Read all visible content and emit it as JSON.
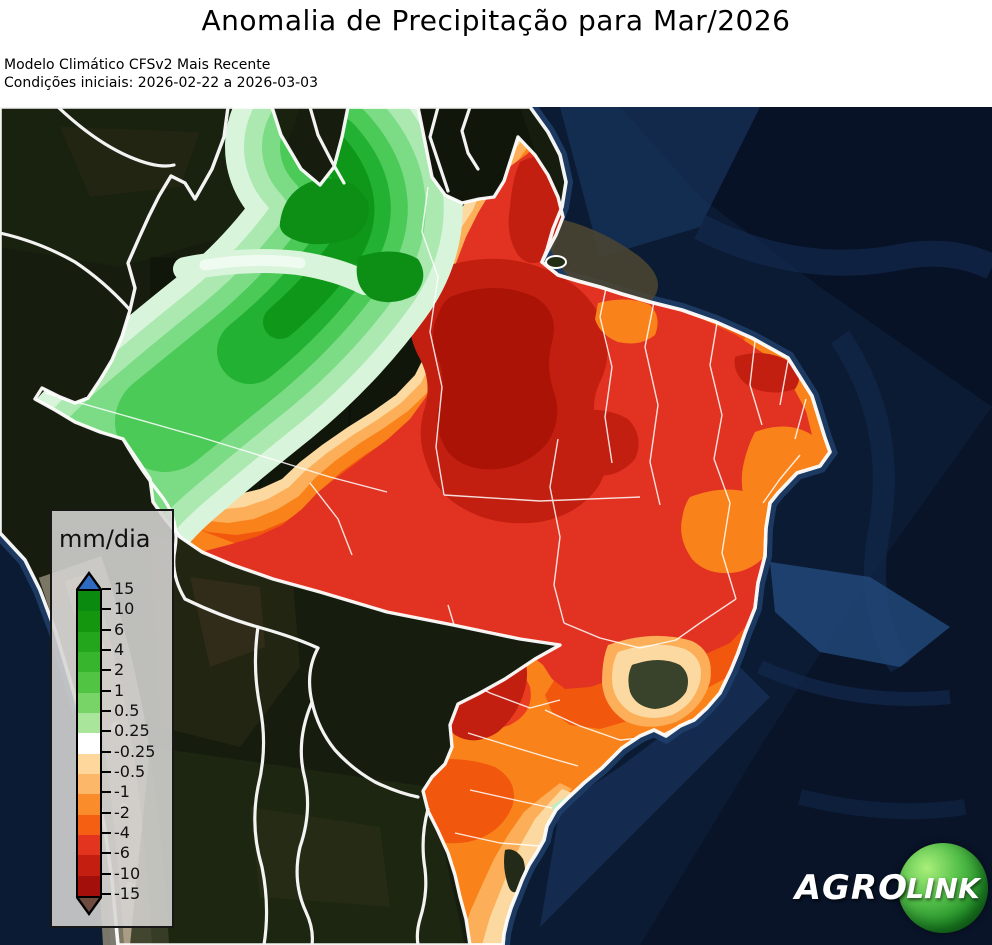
{
  "header": {
    "title": "Anomalia de Precipitação para Mar/2026",
    "subtitle_line1": "Modelo Climático CFSv2 Mais Recente",
    "subtitle_line2": "Condições iniciais: 2026-02-22 a 2026-03-03"
  },
  "legend": {
    "title": "mm/dia",
    "levels": [
      "15",
      "10",
      "6",
      "4",
      "2",
      "1",
      "0.5",
      "0.25",
      "-0.25",
      "-0.5",
      "-1",
      "-2",
      "-4",
      "-6",
      "-10",
      "-15"
    ],
    "segment_colors": [
      "#0a8a0f",
      "#14970f",
      "#23a51c",
      "#37b52c",
      "#52c444",
      "#79d468",
      "#a9e59a",
      "#ffffff",
      "#fdd79c",
      "#fdb768",
      "#fb8c2c",
      "#f45f12",
      "#e33420",
      "#c41e11",
      "#a30f0b"
    ],
    "arrow_top_color": "#2e6ac0",
    "arrow_bottom_color": "#6e4a3f"
  },
  "logo": {
    "agro": "AGRO",
    "link": "LINK"
  },
  "map": {
    "ocean_color": "#0b1b33",
    "land_color": "#161c0e",
    "border_color": "#ffffff",
    "anomaly_palette": {
      "green_high": "#0f9719",
      "green_mid": "#4bca57",
      "green_light": "#abe9b0",
      "green_pale": "#d8f4da",
      "cream": "#fcd9a0",
      "light_orange": "#fcae58",
      "orange": "#f9831a",
      "orange_red": "#f2570e",
      "red": "#e23322",
      "dark_red": "#c21f10",
      "darkest_red": "#ab1307"
    },
    "regions": [
      {
        "area": "northwest-amazon",
        "anomaly": "positive",
        "color": "green"
      },
      {
        "area": "center-north-east-brazil",
        "anomaly": "strong-negative",
        "color": "red"
      },
      {
        "area": "south-and-southeast-coast",
        "anomaly": "weak-negative",
        "color": "orange-cream"
      }
    ]
  }
}
